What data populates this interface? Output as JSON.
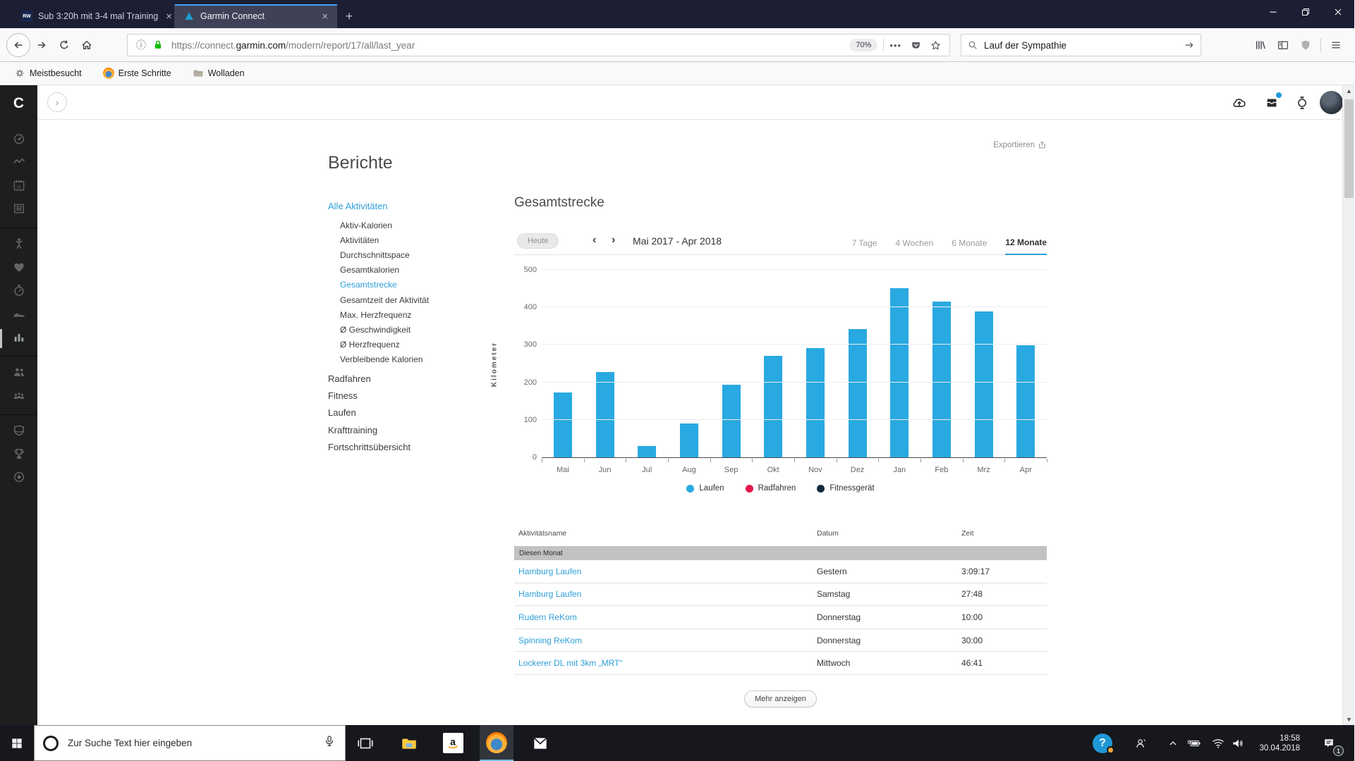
{
  "browser": {
    "tabs": [
      {
        "title": "Sub 3:20h mit 3-4 mal Training",
        "favicon": "rw-favicon"
      },
      {
        "title": "Garmin Connect",
        "favicon": "garmin-triangle-favicon"
      }
    ],
    "url_protocol": "https://connect.",
    "url_domain": "garmin.com",
    "url_path": "/modern/report/17/all/last_year",
    "zoom_level": "70%",
    "search_value": "Lauf der Sympathie",
    "bookmarks": [
      {
        "label": "Meistbesucht",
        "icon": "gear-icon"
      },
      {
        "label": "Erste Schritte",
        "icon": "firefox-icon"
      },
      {
        "label": "Wolladen",
        "icon": "folder-icon"
      }
    ]
  },
  "app": {
    "export_label": "Exportieren",
    "page_title": "Berichte",
    "sidebar_groups": [
      [
        "dashboard-gauge-icon",
        "activity-steps-icon",
        "calendar-icon",
        "news-feed-icon"
      ],
      [
        "health-body-icon",
        "heart-rate-icon",
        "timer-icon",
        "gear-shoe-icon",
        "reports-chart-icon"
      ],
      [
        "connections-icon",
        "groups-icon"
      ],
      [
        "badges-shield-icon",
        "trophy-icon",
        "segments-target-icon"
      ]
    ],
    "sidebar_active": "reports-chart-icon",
    "header_icons": [
      "cloud-sync-icon",
      "inbox-icon",
      "device-watch-icon"
    ],
    "nav": {
      "parent_label": "Alle Aktivitäten",
      "sub_items": [
        "Aktiv-Kalorien",
        "Aktivitäten",
        "Durchschnittspace",
        "Gesamtkalorien",
        "Gesamtstrecke",
        "Gesamtzeit der Aktivität",
        "Max. Herzfrequenz",
        "Ø Geschwindigkeit",
        "Ø Herzfrequenz",
        "Verbleibende Kalorien"
      ],
      "active_sub": "Gesamtstrecke",
      "sections": [
        "Radfahren",
        "Fitness",
        "Laufen",
        "Krafttraining",
        "Fortschrittsübersicht"
      ]
    },
    "report": {
      "title": "Gesamtstrecke",
      "today_label": "Heute",
      "prev_arrow": "‹",
      "next_arrow": "›",
      "range_label": "Mai 2017 - Apr 2018",
      "period_tabs": [
        "7 Tage",
        "4 Wochen",
        "6 Monate",
        "12 Monate"
      ],
      "active_period": "12 Monate"
    },
    "chart_data": {
      "type": "bar",
      "title": "Gesamtstrecke",
      "categories": [
        "Mai",
        "Jun",
        "Jul",
        "Aug",
        "Sep",
        "Okt",
        "Nov",
        "Dez",
        "Jan",
        "Feb",
        "Mrz",
        "Apr"
      ],
      "series": [
        {
          "name": "Laufen",
          "color": "#29a9e1",
          "values": [
            173,
            227,
            30,
            91,
            193,
            270,
            292,
            342,
            451,
            416,
            390,
            298
          ]
        }
      ],
      "xlabel": "",
      "ylabel": "Kilometer",
      "ylim": [
        0,
        500
      ],
      "yticks": [
        0,
        100,
        200,
        300,
        400,
        500
      ],
      "grid": true,
      "legend_position": "bottom",
      "legend": [
        {
          "label": "Laufen",
          "color": "#29a9e1"
        },
        {
          "label": "Radfahren",
          "color": "#e4174b"
        },
        {
          "label": "Fitnessgerät",
          "color": "#12293d"
        }
      ]
    },
    "table": {
      "columns": [
        "Aktivitätsname",
        "Datum",
        "Zeit"
      ],
      "group_label": "Diesen Monat",
      "rows": [
        {
          "name": "Hamburg Laufen",
          "date": "Gestern",
          "time": "3:09:17"
        },
        {
          "name": "Hamburg Laufen",
          "date": "Samstag",
          "time": "27:48"
        },
        {
          "name": "Rudern ReKom",
          "date": "Donnerstag",
          "time": "10:00"
        },
        {
          "name": "Spinning ReKom",
          "date": "Donnerstag",
          "time": "30:00"
        },
        {
          "name": "Lockerer DL mit 3km „MRT“",
          "date": "Mittwoch",
          "time": "46:41"
        }
      ],
      "more_label": "Mehr anzeigen"
    }
  },
  "taskbar": {
    "search_placeholder": "Zur Suche Text hier eingeben",
    "time": "18:58",
    "date": "30.04.2018",
    "notification_count": "1"
  }
}
